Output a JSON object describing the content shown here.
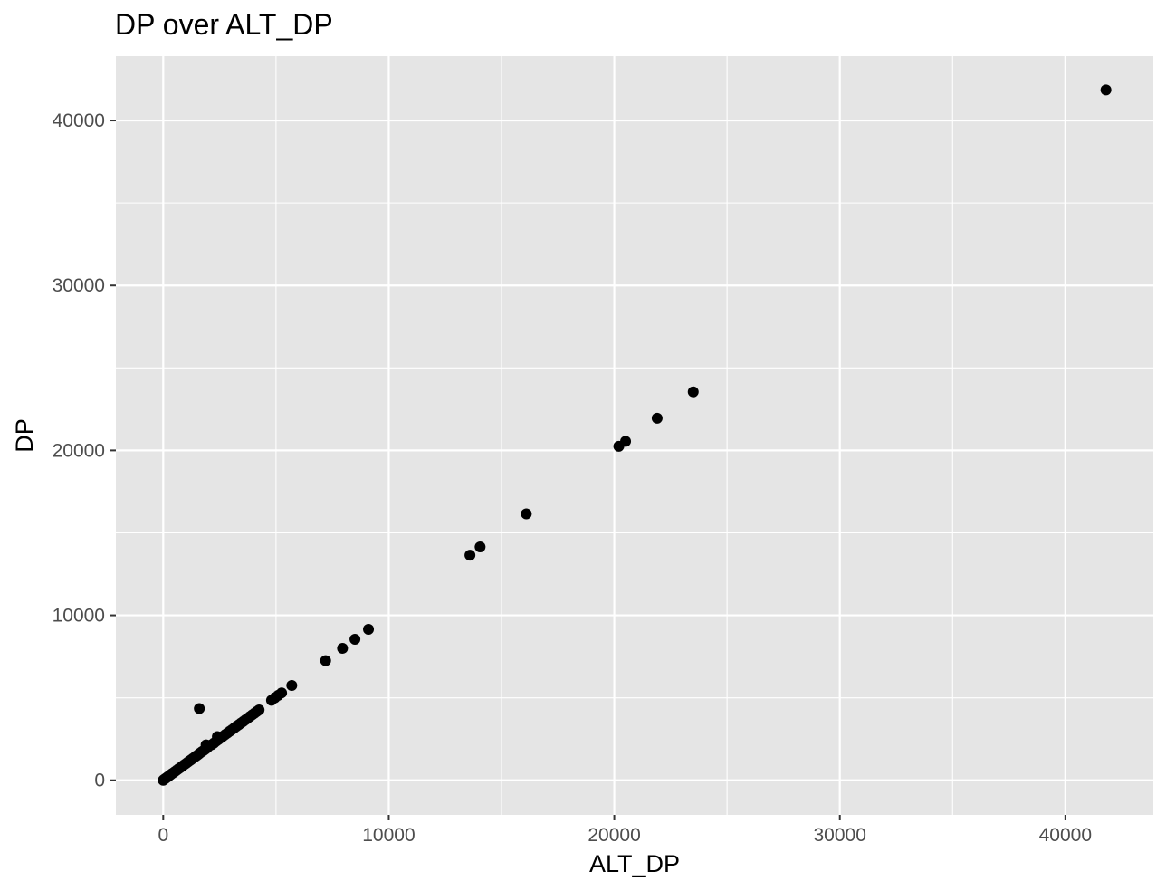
{
  "chart_data": {
    "type": "scatter",
    "title": "DP over ALT_DP",
    "xlabel": "ALT_DP",
    "ylabel": "DP",
    "xlim": [
      -2100,
      43900
    ],
    "ylim": [
      -2100,
      43900
    ],
    "x_ticks": [
      0,
      10000,
      20000,
      30000,
      40000
    ],
    "y_ticks": [
      0,
      10000,
      20000,
      30000,
      40000
    ],
    "x_tick_labels": [
      "0",
      "10000",
      "20000",
      "30000",
      "40000"
    ],
    "y_tick_labels": [
      "0",
      "10000",
      "20000",
      "30000",
      "40000"
    ],
    "x_minor": [
      5000,
      15000,
      25000,
      35000
    ],
    "y_minor": [
      5000,
      15000,
      25000,
      35000
    ],
    "grid": true,
    "legend": "none",
    "panel_color": "#e5e5e5",
    "grid_color": "#ffffff",
    "point_color": "#000000",
    "points": [
      {
        "x": 0,
        "y": 0
      },
      {
        "x": 30,
        "y": 40
      },
      {
        "x": 60,
        "y": 70
      },
      {
        "x": 100,
        "y": 110
      },
      {
        "x": 150,
        "y": 160
      },
      {
        "x": 200,
        "y": 210
      },
      {
        "x": 260,
        "y": 270
      },
      {
        "x": 320,
        "y": 330
      },
      {
        "x": 380,
        "y": 400
      },
      {
        "x": 450,
        "y": 460
      },
      {
        "x": 520,
        "y": 530
      },
      {
        "x": 600,
        "y": 610
      },
      {
        "x": 680,
        "y": 690
      },
      {
        "x": 760,
        "y": 770
      },
      {
        "x": 840,
        "y": 850
      },
      {
        "x": 920,
        "y": 930
      },
      {
        "x": 1000,
        "y": 1010
      },
      {
        "x": 1080,
        "y": 1090
      },
      {
        "x": 1160,
        "y": 1170
      },
      {
        "x": 1240,
        "y": 1250
      },
      {
        "x": 1320,
        "y": 1330
      },
      {
        "x": 1400,
        "y": 1410
      },
      {
        "x": 1480,
        "y": 1490
      },
      {
        "x": 1560,
        "y": 1570
      },
      {
        "x": 1640,
        "y": 1660
      },
      {
        "x": 1720,
        "y": 1740
      },
      {
        "x": 1800,
        "y": 1810
      },
      {
        "x": 1880,
        "y": 1890
      },
      {
        "x": 1960,
        "y": 1980
      },
      {
        "x": 2050,
        "y": 2100
      },
      {
        "x": 2150,
        "y": 2160
      },
      {
        "x": 2250,
        "y": 2260
      },
      {
        "x": 2350,
        "y": 2370
      },
      {
        "x": 2450,
        "y": 2470
      },
      {
        "x": 2550,
        "y": 2570
      },
      {
        "x": 2650,
        "y": 2670
      },
      {
        "x": 2750,
        "y": 2770
      },
      {
        "x": 2850,
        "y": 2870
      },
      {
        "x": 2950,
        "y": 2970
      },
      {
        "x": 3050,
        "y": 3070
      },
      {
        "x": 3150,
        "y": 3170
      },
      {
        "x": 3250,
        "y": 3270
      },
      {
        "x": 3350,
        "y": 3370
      },
      {
        "x": 3450,
        "y": 3470
      },
      {
        "x": 3550,
        "y": 3570
      },
      {
        "x": 3650,
        "y": 3670
      },
      {
        "x": 3750,
        "y": 3770
      },
      {
        "x": 3850,
        "y": 3870
      },
      {
        "x": 3950,
        "y": 3970
      },
      {
        "x": 4050,
        "y": 4070
      },
      {
        "x": 4150,
        "y": 4170
      },
      {
        "x": 4250,
        "y": 4270
      },
      {
        "x": 1900,
        "y": 2150
      },
      {
        "x": 2400,
        "y": 2650
      },
      {
        "x": 1600,
        "y": 4350
      },
      {
        "x": 4800,
        "y": 4850
      },
      {
        "x": 4950,
        "y": 5000
      },
      {
        "x": 5100,
        "y": 5150
      },
      {
        "x": 5250,
        "y": 5300
      },
      {
        "x": 5700,
        "y": 5750
      },
      {
        "x": 7200,
        "y": 7250
      },
      {
        "x": 7950,
        "y": 8000
      },
      {
        "x": 8500,
        "y": 8550
      },
      {
        "x": 9100,
        "y": 9150
      },
      {
        "x": 13600,
        "y": 13650
      },
      {
        "x": 14050,
        "y": 14150
      },
      {
        "x": 16100,
        "y": 16150
      },
      {
        "x": 20200,
        "y": 20250
      },
      {
        "x": 20500,
        "y": 20550
      },
      {
        "x": 21900,
        "y": 21950
      },
      {
        "x": 23500,
        "y": 23550
      },
      {
        "x": 41800,
        "y": 41850
      }
    ]
  }
}
